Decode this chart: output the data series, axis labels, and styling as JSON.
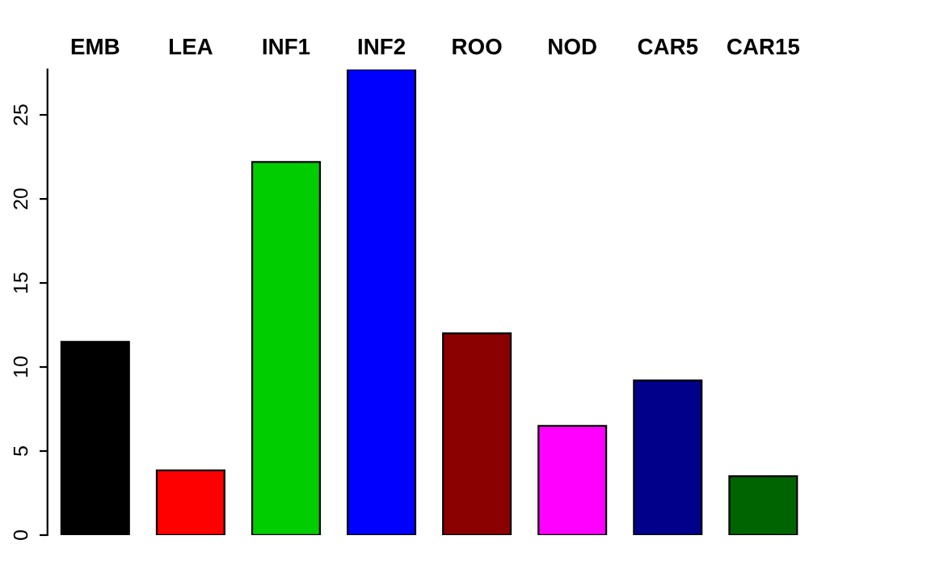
{
  "chart_data": {
    "type": "bar",
    "categories": [
      "EMB",
      "LEA",
      "INF1",
      "INF2",
      "ROO",
      "NOD",
      "CAR5",
      "CAR15"
    ],
    "values": [
      11.5,
      3.85,
      22.2,
      27.7,
      12.0,
      6.5,
      9.2,
      3.5
    ],
    "colors": [
      "#000000",
      "#ff0000",
      "#00cd00",
      "#0000ff",
      "#8b0000",
      "#ff00ff",
      "#00008b",
      "#006400"
    ],
    "ylim": [
      0,
      27.7
    ],
    "yticks": [
      0,
      5,
      10,
      15,
      20,
      25
    ],
    "grid": false,
    "legend": false
  }
}
